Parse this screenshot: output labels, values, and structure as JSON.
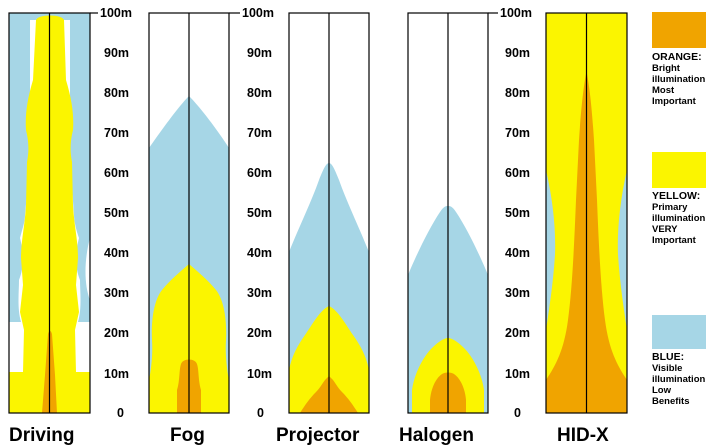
{
  "colors": {
    "orange": "#f0a400",
    "yellow": "#fbf500",
    "blue": "#a6d6e6",
    "frame": "#000000",
    "background": "#ffffff"
  },
  "lamps": [
    {
      "name": "Driving",
      "scale": [
        "100m",
        "90m",
        "80m",
        "70m",
        "60m",
        "50m",
        "40m",
        "30m",
        "20m",
        "10m",
        "0"
      ]
    },
    {
      "name": "Fog",
      "scale": [
        "100m",
        "90m",
        "80m",
        "70m",
        "60m",
        "50m",
        "40m",
        "30m",
        "20m",
        "10m",
        "0"
      ]
    },
    {
      "name": "Projector",
      "scale": []
    },
    {
      "name": "Halogen",
      "scale": [
        "100m",
        "90m",
        "80m",
        "70m",
        "60m",
        "50m",
        "40m",
        "30m",
        "20m",
        "10m",
        "0"
      ]
    },
    {
      "name": "HID-X",
      "scale": []
    }
  ],
  "legend": [
    {
      "color": "orange",
      "title": "ORANGE:",
      "lines": [
        "Bright",
        "illumination",
        "Most",
        "Important"
      ]
    },
    {
      "color": "yellow",
      "title": "YELLOW:",
      "lines": [
        "Primary",
        "illumination",
        "VERY",
        "Important"
      ]
    },
    {
      "color": "blue",
      "title": "BLUE:",
      "lines": [
        "Visible",
        "illumination",
        "Low",
        "Benefits"
      ]
    }
  ]
}
